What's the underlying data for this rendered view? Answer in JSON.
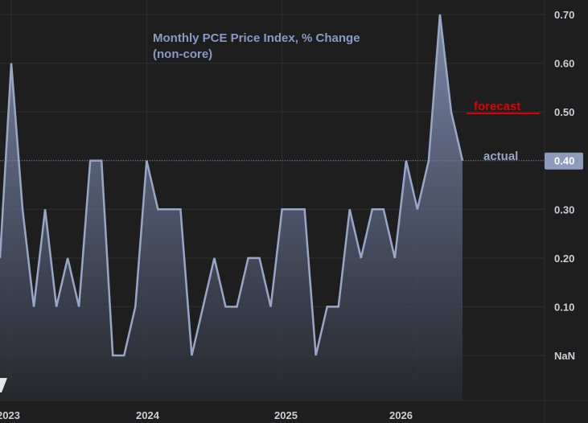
{
  "colors": {
    "background": "#1e1e1f",
    "actual_line": "#98a6c8",
    "forecast": "#e00000",
    "badge_bg": "#8e9bbd",
    "badge_text": "#ffffff",
    "reference_line": "#7f8aa8"
  },
  "chart_data": {
    "type": "area",
    "title_lines": [
      "Monthly PCE Price Index, % Change",
      "(non-core)"
    ],
    "x_ticks": [
      "2023",
      "2024",
      "2025",
      "2026"
    ],
    "y_ticks": [
      "0.70",
      "0.60",
      "0.50",
      "0.40",
      "0.30",
      "0.20",
      "0.10",
      "NaN"
    ],
    "y_axis_side": "right",
    "ylim": [
      -0.09,
      0.7
    ],
    "grid": true,
    "series": [
      {
        "name": "actual",
        "x": [
          "2022-12",
          "2023-01",
          "2023-02",
          "2023-03",
          "2023-04",
          "2023-05",
          "2023-06",
          "2023-07",
          "2023-08",
          "2023-09",
          "2023-10",
          "2023-11",
          "2023-12",
          "2024-01",
          "2024-02",
          "2024-03",
          "2024-04",
          "2024-05",
          "2024-06",
          "2024-07",
          "2024-08",
          "2024-09",
          "2024-10",
          "2024-11",
          "2024-12",
          "2025-01",
          "2025-02",
          "2025-03",
          "2025-04",
          "2025-05",
          "2025-06",
          "2025-07",
          "2025-08",
          "2025-09",
          "2025-10",
          "2025-11",
          "2025-12",
          "2026-01",
          "2026-02",
          "2026-03",
          "2026-04",
          "2026-05"
        ],
        "values": [
          0.2,
          0.6,
          0.3,
          0.1,
          0.3,
          0.1,
          0.2,
          0.1,
          0.4,
          0.4,
          0.0,
          0.0,
          0.1,
          0.4,
          0.3,
          0.3,
          0.3,
          0.0,
          0.1,
          0.2,
          0.1,
          0.1,
          0.2,
          0.2,
          0.1,
          0.3,
          0.3,
          0.3,
          0.0,
          0.1,
          0.1,
          0.3,
          0.2,
          0.3,
          0.3,
          0.2,
          0.4,
          0.3,
          0.4,
          0.7,
          0.5,
          0.4
        ]
      }
    ],
    "forecast_value": 0.5,
    "reference_value": 0.4,
    "current_value_badge": "0.40",
    "legend": [
      {
        "label": "forecast",
        "color": "#e00000"
      },
      {
        "label": "actual",
        "color": "#98a6c8"
      }
    ]
  }
}
